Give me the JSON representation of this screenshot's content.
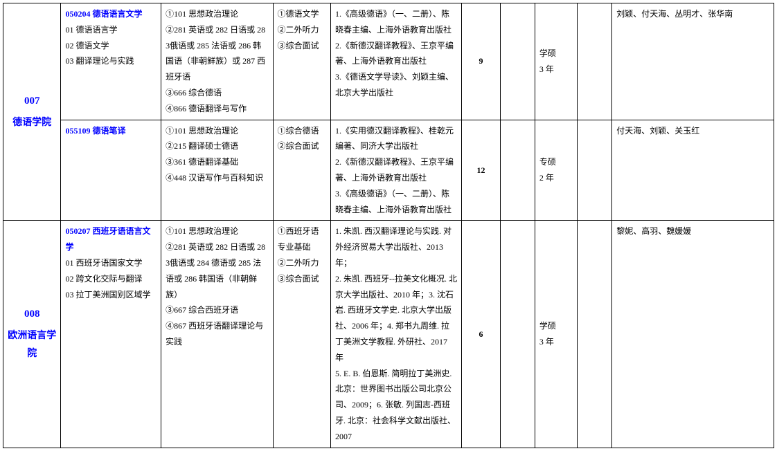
{
  "rows": [
    {
      "dept_code": "007",
      "dept_name": "德语学院",
      "subrows": [
        {
          "major_title": "050204 德语语言文学",
          "major_lines": [
            "01 德语语言学",
            "02 德语文学",
            "03 翻译理论与实践"
          ],
          "exam": "①101 思想政治理论\n②281 英语或 282 日语或 283俄语或 285 法语或 286 韩国语（非朝鲜族）或 287 西班牙语\n③666 综合德语\n④866 德语翻译与写作",
          "retest": "①德语文学\n②二外听力\n③综合面试",
          "reference": "1.《高级德语》（一、二册）、陈晓春主编、上海外语教育出版社\n2.《新德汉翻译教程》、王京平编著、上海外语教育出版社\n3.《德语文学导读》、刘颖主编、北京大学出版社",
          "enroll": "9",
          "empty1": "",
          "duration": "学硕\n3 年",
          "empty2": "",
          "faculty": "刘颖、付天海、丛明才、张华南"
        },
        {
          "major_title": "055109  德语笔译",
          "major_lines": [],
          "exam": "①101 思想政治理论\n②215 翻译硕士德语\n③361 德语翻译基础\n④448 汉语写作与百科知识",
          "retest": "①综合德语\n②综合面试",
          "reference": "1.《实用德汉翻译教程》、桂乾元编著、同济大学出版社\n2.《新德汉翻译教程》、王京平编著、上海外语教育出版社\n3.《高级德语》（一、二册）、陈晓春主编、上海外语教育出版社",
          "enroll": "12",
          "empty1": "",
          "duration": "专硕\n2 年",
          "empty2": "",
          "faculty": "付天海、刘颖、关玉红"
        }
      ]
    },
    {
      "dept_code": "008",
      "dept_name": "欧洲语言学院",
      "subrows": [
        {
          "major_title": "050207 西班牙语语言文学",
          "major_lines": [
            "01  西班牙语国家文学",
            "02  跨文化交际与翻译",
            "03  拉丁美洲国别区域学"
          ],
          "exam": "①101 思想政治理论\n②281 英语或 282 日语或 283俄语或 284 德语或 285 法语或 286 韩国语（非朝鲜族）\n③667 综合西班牙语\n④867 西班牙语翻译理论与实践",
          "retest": "①西班牙语专业基础\n②二外听力\n③综合面试",
          "reference": "1. 朱凯. 西汉翻译理论与实践. 对外经济贸易大学出版社、2013 年；\n2. 朱凯. 西班牙--拉美文化概况. 北京大学出版社、2010 年；3. 沈石岩. 西班牙文学史. 北京大学出版社、2006 年；4. 郑书九周维. 拉丁美洲文学教程. 外研社、2017 年\n5. E. B. 伯恩斯. 简明拉丁美洲史. 北京：世界图书出版公司北京公司、2009；6. 张敏. 列国志-西班牙. 北京：社会科学文献出版社、2007",
          "enroll": "6",
          "empty1": "",
          "duration": "学硕\n3 年",
          "empty2": "",
          "faculty": "黎妮、高羽、魏媛媛"
        }
      ]
    }
  ]
}
